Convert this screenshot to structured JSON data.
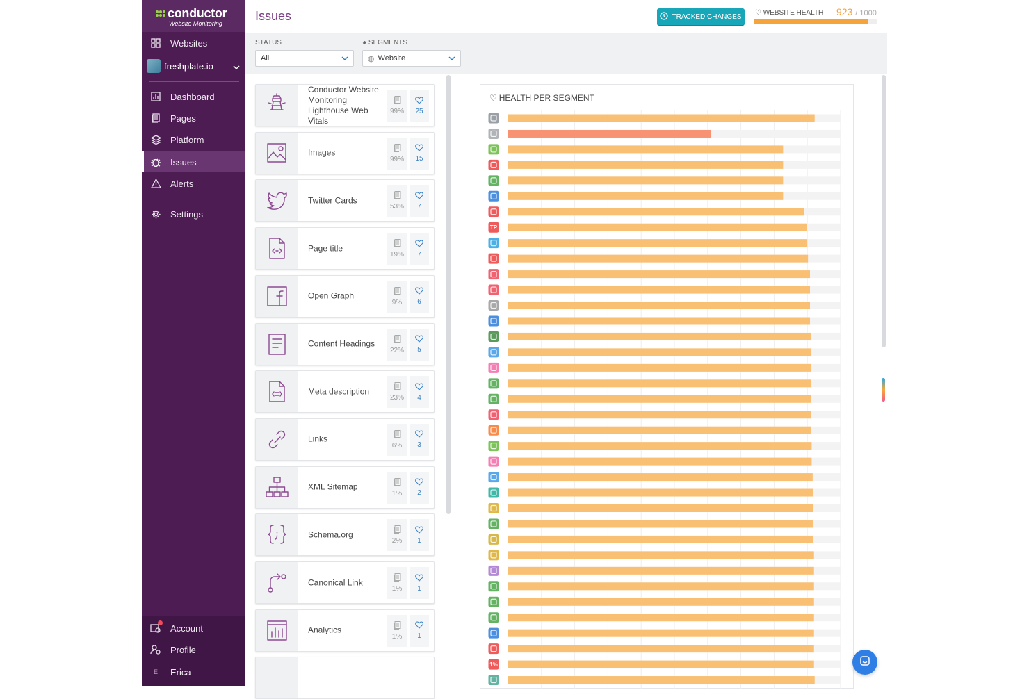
{
  "sidebar": {
    "logo": {
      "name": "conductor",
      "tagline": "Website Monitoring"
    },
    "nav_top": [
      {
        "label": "Websites",
        "icon": "grid-icon"
      }
    ],
    "site": {
      "label": "freshplate.io"
    },
    "nav_main": [
      {
        "label": "Dashboard",
        "icon": "chart-icon"
      },
      {
        "label": "Pages",
        "icon": "pages-icon"
      },
      {
        "label": "Platform",
        "icon": "layers-icon"
      },
      {
        "label": "Issues",
        "icon": "bug-icon",
        "active": true
      },
      {
        "label": "Alerts",
        "icon": "warning-icon"
      }
    ],
    "nav_settings": {
      "label": "Settings",
      "icon": "gear-icon"
    },
    "bottom": [
      {
        "label": "Account",
        "icon": "account-icon"
      },
      {
        "label": "Profile",
        "icon": "profile-icon"
      },
      {
        "label": "Erica",
        "initial": "E"
      }
    ]
  },
  "header": {
    "title": "Issues",
    "tracked_changes": "TRACKED CHANGES",
    "health_label": "WEBSITE HEALTH",
    "health_score": "923",
    "health_total": "/ 1000",
    "health_fraction": 0.923
  },
  "filters": {
    "status_label": "STATUS",
    "status_value": "All",
    "segments_label": "SEGMENTS",
    "segments_value": "Website"
  },
  "issues": [
    {
      "name": "Conductor Website Monitoring Lighthouse Web Vitals",
      "icon": "lighthouse-icon",
      "pages": "99%",
      "points": "25"
    },
    {
      "name": "Images",
      "icon": "image-icon",
      "pages": "99%",
      "points": "15"
    },
    {
      "name": "Twitter Cards",
      "icon": "twitter-icon",
      "pages": "53%",
      "points": "7"
    },
    {
      "name": "Page title",
      "icon": "code-file-icon",
      "pages": "19%",
      "points": "7"
    },
    {
      "name": "Open Graph",
      "icon": "facebook-icon",
      "pages": "9%",
      "points": "6"
    },
    {
      "name": "Content Headings",
      "icon": "headings-icon",
      "pages": "22%",
      "points": "5"
    },
    {
      "name": "Meta description",
      "icon": "meta-file-icon",
      "pages": "23%",
      "points": "4"
    },
    {
      "name": "Links",
      "icon": "link-icon",
      "pages": "6%",
      "points": "3"
    },
    {
      "name": "XML Sitemap",
      "icon": "sitemap-icon",
      "pages": "1%",
      "points": "2"
    },
    {
      "name": "Schema.org",
      "icon": "braces-icon",
      "pages": "2%",
      "points": "1"
    },
    {
      "name": "Canonical Link",
      "icon": "canonical-icon",
      "pages": "1%",
      "points": "1"
    },
    {
      "name": "Analytics",
      "icon": "analytics-icon",
      "pages": "1%",
      "points": "1"
    }
  ],
  "chart_data": {
    "type": "bar",
    "orientation": "horizontal",
    "title": "HEALTH PER SEGMENT",
    "xlim": [
      0,
      1000
    ],
    "grid": true,
    "colors": {
      "normal": "#f9bf72",
      "warning": "#f79372",
      "track": "#f3f3f3"
    },
    "segments": [
      {
        "icon": "globe-icon",
        "color": "#9aa0a6",
        "value": 922
      },
      {
        "icon": "window-icon",
        "color": "#b0b4b8",
        "value": 610,
        "warning": true
      },
      {
        "icon": "square-icon",
        "color": "#7cc35a",
        "value": 827
      },
      {
        "icon": "trend-icon",
        "color": "#ef5b5b",
        "value": 827
      },
      {
        "icon": "network-icon",
        "color": "#63b363",
        "value": 827
      },
      {
        "icon": "book-icon",
        "color": "#4a8fe0",
        "value": 827
      },
      {
        "icon": "trend-icon",
        "color": "#ef5b5b",
        "value": 890
      },
      {
        "icon": "tp-badge-icon",
        "label": "TP",
        "color": "#ef5b5b",
        "value": 898
      },
      {
        "icon": "shield-icon",
        "color": "#4ab0e6",
        "value": 900
      },
      {
        "icon": "user-icon",
        "color": "#ef5b5b",
        "value": 902
      },
      {
        "icon": "square-icon",
        "color": "#f06272",
        "value": 908
      },
      {
        "icon": "bell-icon",
        "color": "#f06272",
        "value": 908
      },
      {
        "icon": "pattern-icon",
        "color": "#a8a8a8",
        "value": 908
      },
      {
        "icon": "support-icon",
        "color": "#4a8fe0",
        "value": 908
      },
      {
        "icon": "photo-icon",
        "color": "#5a9a5a",
        "value": 912
      },
      {
        "icon": "square-icon",
        "color": "#5aa7ea",
        "value": 912
      },
      {
        "icon": "square-icon",
        "color": "#f57fb4",
        "value": 912
      },
      {
        "icon": "inbox-icon",
        "color": "#63b363",
        "value": 912
      },
      {
        "icon": "chart-icon",
        "color": "#63b363",
        "value": 912
      },
      {
        "icon": "square-icon",
        "color": "#f06272",
        "value": 912
      },
      {
        "icon": "square-icon",
        "color": "#f98b4a",
        "value": 912
      },
      {
        "icon": "square-icon",
        "color": "#7cc35a",
        "value": 913
      },
      {
        "icon": "cup-icon",
        "color": "#f57fb4",
        "value": 913
      },
      {
        "icon": "square-icon",
        "color": "#5aa7ea",
        "value": 916
      },
      {
        "icon": "trend-icon",
        "color": "#3fb8a8",
        "value": 918
      },
      {
        "icon": "note-icon",
        "color": "#e0b84a",
        "value": 918
      },
      {
        "icon": "network-icon",
        "color": "#63b363",
        "value": 918
      },
      {
        "icon": "square-icon",
        "color": "#d7b94a",
        "value": 918
      },
      {
        "icon": "list-icon",
        "color": "#e0b84a",
        "value": 920
      },
      {
        "icon": "crown-icon",
        "color": "#b48ad6",
        "value": 920
      },
      {
        "icon": "clock-icon",
        "color": "#63b363",
        "value": 920
      },
      {
        "icon": "bag-icon",
        "color": "#63b363",
        "value": 920
      },
      {
        "icon": "leaf-icon",
        "color": "#63b363",
        "value": 920
      },
      {
        "icon": "shield-icon",
        "color": "#4a8fe0",
        "value": 920
      },
      {
        "icon": "trend-icon",
        "color": "#ef5b5b",
        "value": 920
      },
      {
        "icon": "percent-badge-icon",
        "label": "1%",
        "color": "#ef5b5b",
        "value": 920
      },
      {
        "icon": "doc-icon",
        "color": "#63b3a3",
        "value": 922
      }
    ]
  }
}
